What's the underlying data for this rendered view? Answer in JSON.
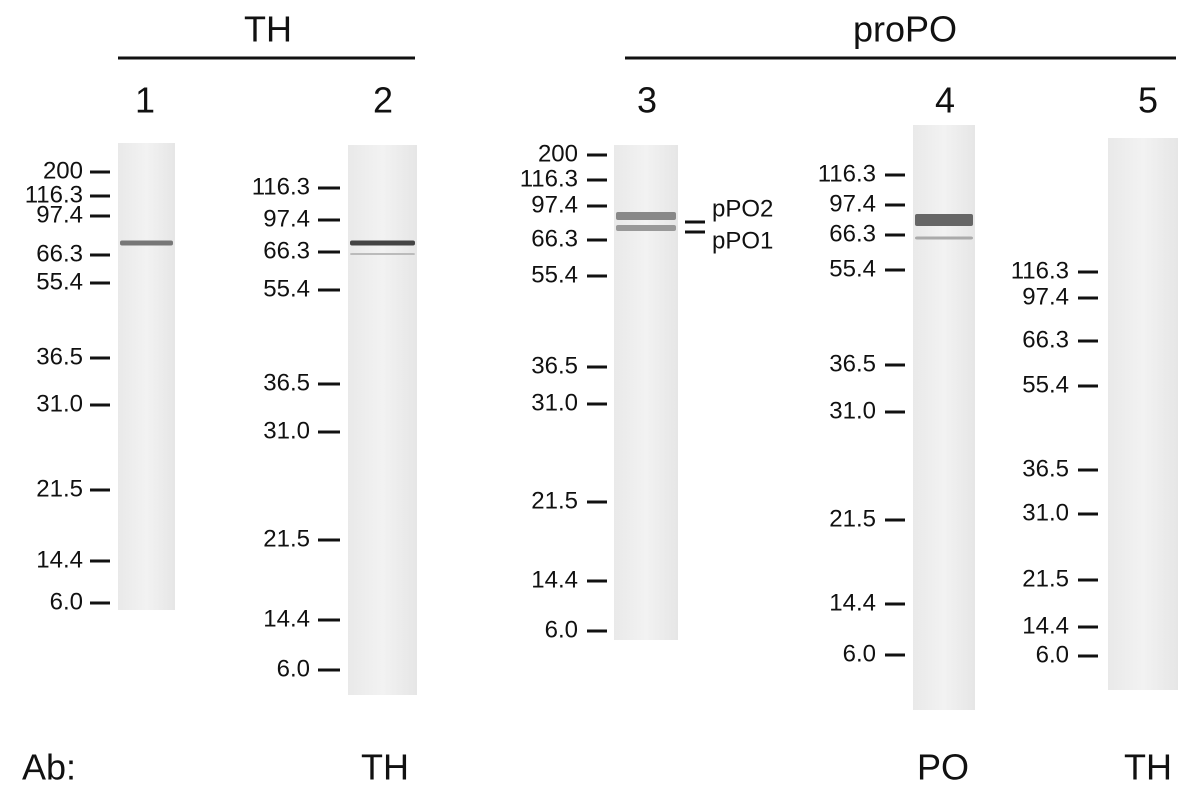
{
  "groups": [
    {
      "label": "TH"
    },
    {
      "label": "proPO"
    }
  ],
  "lanes": [
    {
      "number": "1",
      "markers": [
        "200",
        "116.3",
        "97.4",
        "66.3",
        "55.4",
        "36.5",
        "31.0",
        "21.5",
        "14.4",
        "6.0"
      ]
    },
    {
      "number": "2",
      "markers": [
        "116.3",
        "97.4",
        "66.3",
        "55.4",
        "36.5",
        "31.0",
        "21.5",
        "14.4",
        "6.0"
      ],
      "antibody": "TH"
    },
    {
      "number": "3",
      "markers": [
        "200",
        "116.3",
        "97.4",
        "66.3",
        "55.4",
        "36.5",
        "31.0",
        "21.5",
        "14.4",
        "6.0"
      ],
      "bands": [
        "pPO2",
        "pPO1"
      ]
    },
    {
      "number": "4",
      "markers": [
        "116.3",
        "97.4",
        "66.3",
        "55.4",
        "36.5",
        "31.0",
        "21.5",
        "14.4",
        "6.0"
      ],
      "antibody": "PO"
    },
    {
      "number": "5",
      "markers": [
        "116.3",
        "97.4",
        "66.3",
        "55.4",
        "36.5",
        "31.0",
        "21.5",
        "14.4",
        "6.0"
      ],
      "antibody": "TH"
    }
  ],
  "antibody_label": "Ab:"
}
